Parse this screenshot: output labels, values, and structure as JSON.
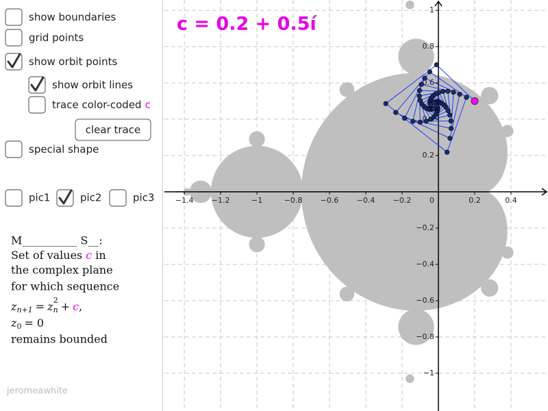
{
  "title": "c = 0.2 + 0.5í",
  "controls": [
    {
      "label": "show boundaries",
      "checked": false
    },
    {
      "label": "grid points",
      "checked": false
    },
    {
      "label": "show orbit points",
      "checked": true
    },
    {
      "label": "show orbit lines",
      "checked": true
    },
    {
      "label": "trace color-coded",
      "suffix": "c",
      "checked": false
    },
    {
      "label": "special shape",
      "checked": false
    }
  ],
  "button": "clear trace",
  "pics": [
    {
      "label": "pic1",
      "checked": false
    },
    {
      "label": "pic2",
      "checked": true
    },
    {
      "label": "pic3",
      "checked": false
    }
  ],
  "description": {
    "heading": "M__________ S__:",
    "line1_pre": "Set of values",
    "line1_c": "c",
    "line1_post": "in",
    "line2": "the complex plane",
    "line3": "for which sequence",
    "recurrence": {
      "z": "z",
      "sub": "n+1",
      "eq": "=",
      "z2": "z",
      "sub2": "n",
      "sup": "2",
      "plus": "+",
      "c": "c",
      "comma": ","
    },
    "init": {
      "z": "z",
      "sub": "0",
      "eq": "= 0"
    },
    "line4": "remains bounded"
  },
  "credit": "jeromeawhite",
  "graph": {
    "xlim": [
      -1.51,
      0.604
    ],
    "ylim": [
      -1.208,
      1.057
    ],
    "xticks": [
      {
        "value": -1.4,
        "label": "−1.4"
      },
      {
        "value": -1.2,
        "label": "−1.2"
      },
      {
        "value": -1,
        "label": "−1"
      },
      {
        "value": -0.8,
        "label": "−0.8"
      },
      {
        "value": -0.6,
        "label": "−0.6"
      },
      {
        "value": -0.4,
        "label": "−0.4"
      },
      {
        "value": -0.2,
        "label": "−0.2"
      },
      0,
      0.2,
      0.4
    ],
    "yticks": [
      1,
      0.8,
      0.6,
      0.4,
      0.2,
      {
        "value": -0.2,
        "label": "−0.2"
      },
      {
        "value": -0.4,
        "label": "−0.4"
      },
      {
        "value": -0.6,
        "label": "−0.6"
      },
      {
        "value": -0.8,
        "label": "−0.8"
      },
      {
        "value": -1,
        "label": "−1"
      }
    ],
    "point": {
      "x": 0.2,
      "y": 0.5
    }
  }
}
